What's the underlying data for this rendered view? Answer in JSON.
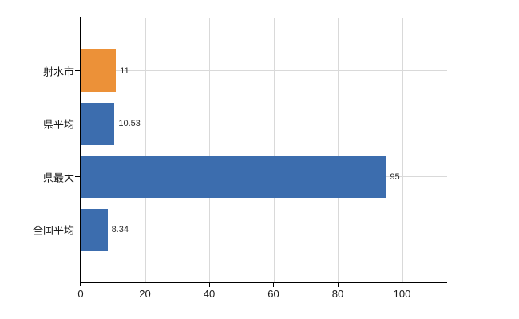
{
  "chart_data": {
    "type": "bar",
    "orientation": "horizontal",
    "title": "",
    "xlabel": "",
    "ylabel": "",
    "categories": [
      "射水市",
      "県平均",
      "県最大",
      "全国平均"
    ],
    "values": [
      11,
      10.53,
      95,
      8.34
    ],
    "value_labels": [
      "11",
      "10.53",
      "95",
      "8.34"
    ],
    "series": [
      {
        "name": "値",
        "values": [
          11,
          10.53,
          95,
          8.34
        ]
      }
    ],
    "bar_colors": [
      "#EC9138",
      "#3C6DAE",
      "#3C6DAE",
      "#3C6DAE"
    ],
    "x_ticks": [
      0,
      20,
      40,
      60,
      80,
      100
    ],
    "x_tick_labels": [
      "0",
      "20",
      "40",
      "60",
      "80",
      "100"
    ],
    "xlim": [
      0,
      114
    ],
    "grid": true,
    "legend": "none",
    "colors": {
      "accent_orange": "#EC9138",
      "accent_blue": "#3C6DAE",
      "gridline": "#d9d9d9",
      "axis": "#000000",
      "text": "#1a1a1a",
      "value_text": "#2b2b2b",
      "background": "#ffffff"
    }
  }
}
